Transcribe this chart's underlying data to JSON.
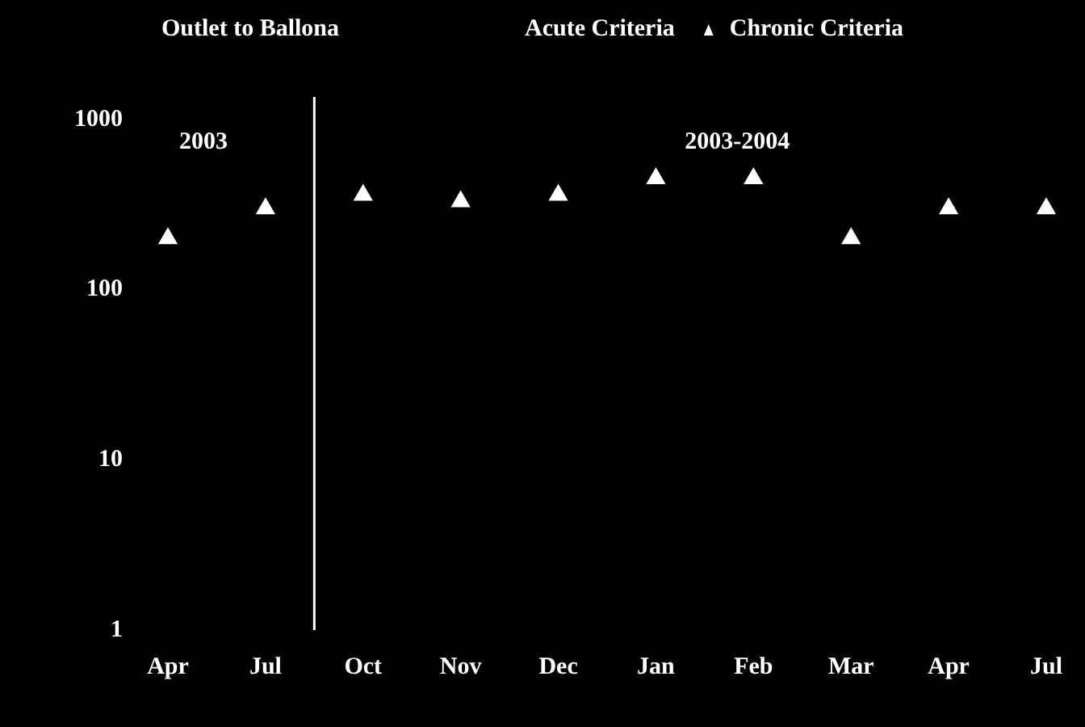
{
  "chart_data": {
    "type": "scatter",
    "title": "Outlet to Ballona",
    "categories": [
      "Apr",
      "Jul",
      "Oct",
      "Nov",
      "Dec",
      "Jan",
      "Feb",
      "Mar",
      "Apr",
      "Jul"
    ],
    "series": [
      {
        "name": "Chronic Criteria",
        "color": "#ffffff",
        "values": [
          200,
          300,
          360,
          330,
          360,
          450,
          450,
          200,
          300,
          300
        ]
      }
    ],
    "log": "y",
    "ylim": [
      1,
      1000
    ],
    "yticks": [
      1,
      10,
      100,
      1000
    ],
    "grid": false,
    "legend": "top right",
    "marker": "triangle",
    "annotations": [
      "Acute Criteria",
      "2003",
      "2003-2004"
    ]
  }
}
